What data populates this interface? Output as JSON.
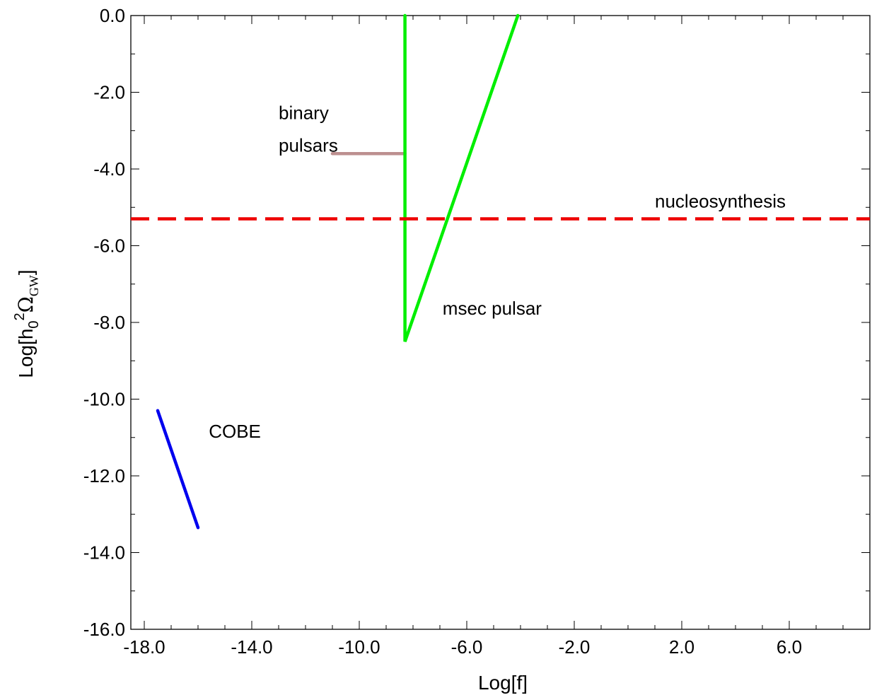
{
  "chart_data": {
    "type": "line",
    "title": "",
    "xlabel": "Log[f]",
    "ylabel": {
      "prefix": "Log[h",
      "sub0": "0",
      "sup": "2",
      "omega": "Ω",
      "subGW": "GW",
      "suffix": "]"
    },
    "xlim": [
      -18.5,
      9.0
    ],
    "ylim": [
      -16.0,
      0.0
    ],
    "grid": false,
    "legend": "none",
    "x_ticks": [
      -18.0,
      -14.0,
      -10.0,
      -6.0,
      -2.0,
      2.0,
      6.0
    ],
    "x_tick_labels": [
      "-18.0",
      "-14.0",
      "-10.0",
      "-6.0",
      "-2.0",
      "2.0",
      "6.0"
    ],
    "y_ticks": [
      0.0,
      -2.0,
      -4.0,
      -6.0,
      -8.0,
      -10.0,
      -12.0,
      -14.0,
      -16.0
    ],
    "y_tick_labels": [
      "0.0",
      "-2.0",
      "-4.0",
      "-6.0",
      "-8.0",
      "-10.0",
      "-12.0",
      "-14.0",
      "-16.0"
    ],
    "series": [
      {
        "key": "cobe",
        "color": "#0000ee",
        "dash": "solid",
        "x": [
          -17.5,
          -16.0
        ],
        "y": [
          -10.3,
          -13.35
        ]
      },
      {
        "key": "binary_pulsars",
        "color": "#bc8f8f",
        "dash": "solid",
        "x": [
          -11.0,
          -8.3
        ],
        "y": [
          -3.6,
          -3.6
        ]
      },
      {
        "key": "msec_pulsar",
        "color": "#00ee00",
        "dash": "solid",
        "x": [
          -8.3,
          -8.3,
          -4.1
        ],
        "y": [
          0.0,
          -8.5,
          0.0
        ]
      },
      {
        "key": "nucleosynthesis",
        "color": "#ee0000",
        "dash": "dashed",
        "x": [
          -18.5,
          9.0
        ],
        "y": [
          -5.3,
          -5.3
        ]
      }
    ],
    "annotations": [
      {
        "key": "binary_1",
        "text": "binary",
        "x": -13.0,
        "y": -2.7
      },
      {
        "key": "binary_2",
        "text": "pulsars",
        "x": -13.0,
        "y": -3.55
      },
      {
        "key": "nucleosynthesis",
        "text": "nucleosynthesis",
        "x": 1.0,
        "y": -5.0
      },
      {
        "key": "msec_pulsar",
        "text": "msec pulsar",
        "x": -6.9,
        "y": -7.8
      },
      {
        "key": "cobe",
        "text": "COBE",
        "x": -15.6,
        "y": -11.0
      }
    ]
  }
}
